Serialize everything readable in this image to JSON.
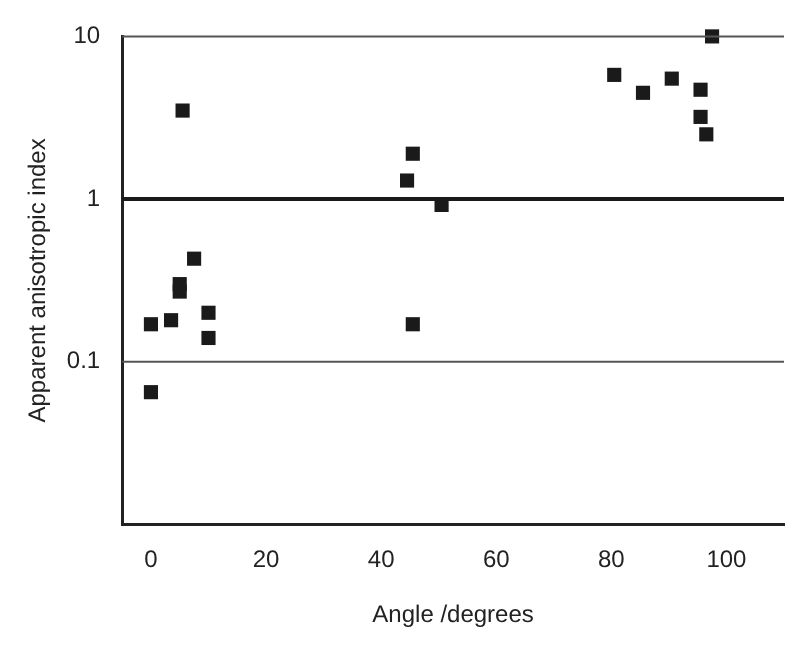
{
  "chart_data": {
    "type": "scatter",
    "xlabel": "Angle /degrees",
    "ylabel": "Apparent anisotropic index",
    "x": [
      0,
      0,
      3.5,
      5,
      5,
      5.5,
      7.5,
      10,
      10,
      44.5,
      45.5,
      45.5,
      50.5,
      80.5,
      85.5,
      90.5,
      95.5,
      95.5,
      96.5,
      97.5
    ],
    "series": [
      {
        "color": "#1a1a1a",
        "values": [
          0.17,
          0.065,
          0.18,
          0.27,
          0.3,
          3.5,
          0.43,
          0.2,
          0.14,
          1.3,
          1.9,
          0.17,
          0.92,
          5.8,
          4.5,
          5.5,
          4.7,
          3.2,
          2.5,
          10
        ]
      }
    ],
    "xlim": [
      -5,
      110
    ],
    "xticks": [
      0,
      20,
      40,
      60,
      80,
      100
    ],
    "ylim": [
      0.01,
      10
    ],
    "yticks": [
      0.1,
      1,
      10
    ],
    "log": "y",
    "marker": "square",
    "legend": false,
    "ref_lines": [
      {
        "axis": "y",
        "value": 10,
        "color": "#555555"
      },
      {
        "axis": "y",
        "value": 1,
        "color": "#1a1a1a"
      },
      {
        "axis": "y",
        "value": 0.1,
        "color": "#555555"
      }
    ]
  }
}
